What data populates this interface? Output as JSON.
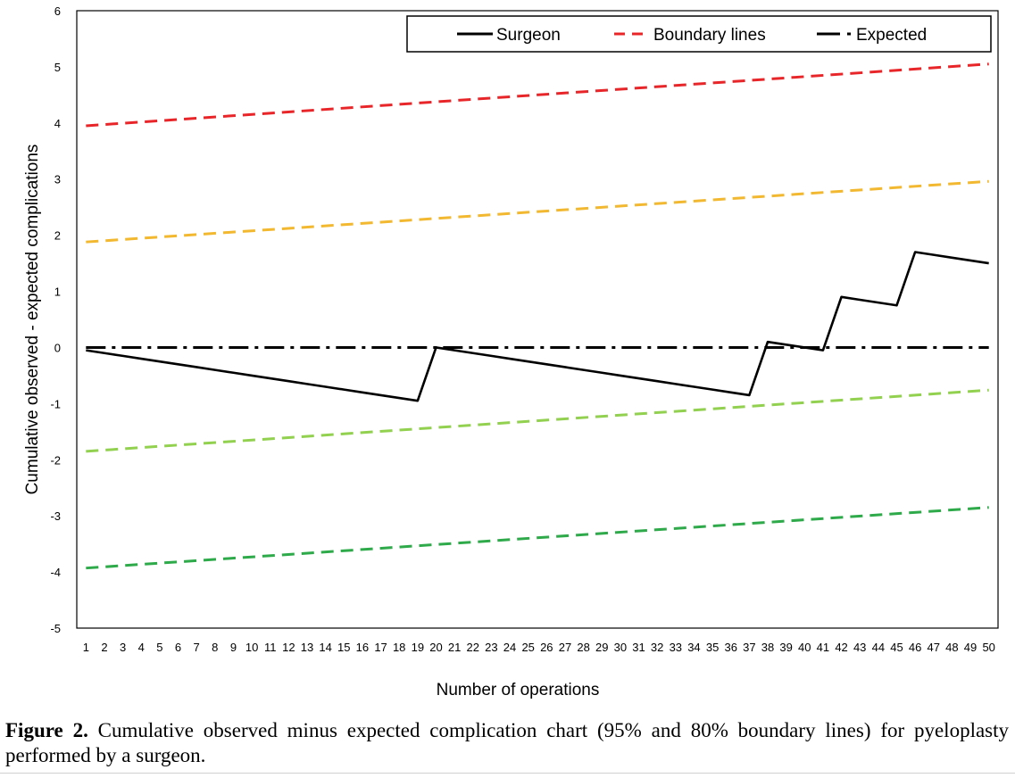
{
  "chart_data": {
    "type": "line",
    "title": "",
    "xlabel": "Number of operations",
    "ylabel": "Cumulative observed - expected complications",
    "xlim": [
      1,
      50
    ],
    "ylim": [
      -5,
      6
    ],
    "yticks": [
      "-5",
      "-4",
      "-3",
      "-2",
      "-1",
      "0",
      "1",
      "2",
      "3",
      "4",
      "5",
      "6"
    ],
    "xticks": [
      "1",
      "2",
      "3",
      "4",
      "5",
      "6",
      "7",
      "8",
      "9",
      "10",
      "11",
      "12",
      "13",
      "14",
      "15",
      "16",
      "17",
      "18",
      "19",
      "20",
      "21",
      "22",
      "23",
      "24",
      "25",
      "26",
      "27",
      "28",
      "29",
      "30",
      "31",
      "32",
      "33",
      "34",
      "35",
      "36",
      "37",
      "38",
      "39",
      "40",
      "41",
      "42",
      "43",
      "44",
      "45",
      "46",
      "47",
      "48",
      "49",
      "50"
    ],
    "grid": false,
    "legend_position": "top-right",
    "legend": [
      {
        "label": "Surgeon",
        "color": "#000000",
        "style": "solid"
      },
      {
        "label": "Boundary lines",
        "color": "#e8262a",
        "style": "dashed"
      },
      {
        "label": "Expected",
        "color": "#000000",
        "style": "dash-dot"
      }
    ],
    "series": [
      {
        "name": "Surgeon",
        "color": "#000000",
        "style": "solid",
        "x": [
          1,
          2,
          3,
          4,
          5,
          6,
          7,
          8,
          9,
          10,
          11,
          12,
          13,
          14,
          15,
          16,
          17,
          18,
          19,
          20,
          21,
          22,
          23,
          24,
          25,
          26,
          27,
          28,
          29,
          30,
          31,
          32,
          33,
          34,
          35,
          36,
          37,
          38,
          39,
          40,
          41,
          42,
          43,
          44,
          45,
          46,
          47,
          48,
          49,
          50
        ],
        "y": [
          -0.05,
          -0.1,
          -0.15,
          -0.2,
          -0.25,
          -0.3,
          -0.35,
          -0.4,
          -0.45,
          -0.5,
          -0.55,
          -0.6,
          -0.65,
          -0.7,
          -0.75,
          -0.8,
          -0.85,
          -0.9,
          -0.95,
          0.0,
          -0.05,
          -0.1,
          -0.15,
          -0.2,
          -0.25,
          -0.3,
          -0.35,
          -0.4,
          -0.45,
          -0.5,
          -0.55,
          -0.6,
          -0.65,
          -0.7,
          -0.75,
          -0.8,
          -0.85,
          0.1,
          0.05,
          0.0,
          -0.05,
          0.9,
          0.85,
          0.8,
          0.75,
          1.7,
          1.65,
          1.6,
          1.55,
          1.5
        ]
      },
      {
        "name": "Expected",
        "color": "#000000",
        "style": "dash-dot",
        "x": [
          1,
          50
        ],
        "y": [
          0,
          0
        ]
      },
      {
        "name": "Boundary lines",
        "color": "#e8262a",
        "style": "dashed",
        "x": [
          1,
          50
        ],
        "y": [
          3.95,
          5.05
        ]
      },
      {
        "color": "#f2b830",
        "style": "dashed",
        "x": [
          1,
          50
        ],
        "y": [
          1.88,
          2.96
        ]
      },
      {
        "color": "#92d050",
        "style": "dashed",
        "x": [
          1,
          50
        ],
        "y": [
          -1.85,
          -0.76
        ]
      },
      {
        "color": "#2eaa4a",
        "style": "dashed",
        "x": [
          1,
          50
        ],
        "y": [
          -3.93,
          -2.85
        ]
      }
    ]
  },
  "caption": {
    "label": "Figure 2.",
    "text": " Cumulative observed minus expected complication chart (95% and 80% boundary lines) for pyeloplasty performed by a surgeon."
  }
}
